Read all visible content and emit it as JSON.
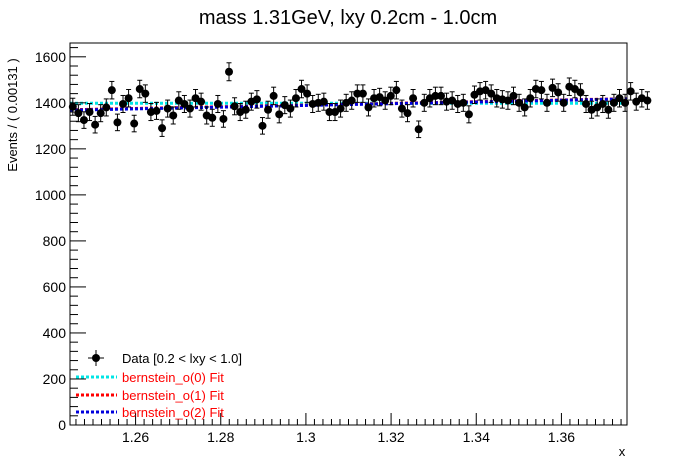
{
  "chart_data": {
    "type": "scatter",
    "title": "mass 1.31GeV, lxy 0.2cm - 1.0cm",
    "xlabel": "x",
    "ylabel": "Events / ( 0.00131 )",
    "xlim": [
      1.2446,
      1.3754
    ],
    "ylim": [
      0,
      1660
    ],
    "x_ticks": [
      1.26,
      1.28,
      1.3,
      1.32,
      1.34,
      1.36
    ],
    "x_tick_labels": [
      "1.26",
      "1.28",
      "1.3",
      "1.32",
      "1.34",
      "1.36"
    ],
    "y_ticks": [
      0,
      200,
      400,
      600,
      800,
      1000,
      1200,
      1400,
      1600
    ],
    "y_tick_labels": [
      "0",
      "200",
      "400",
      "600",
      "800",
      "1000",
      "1200",
      "1400",
      "1600"
    ],
    "grid": false,
    "legend_position": "bottom-left",
    "series": [
      {
        "name": "Data [0.2 < lxy < 1.0]",
        "kind": "points",
        "color": "#000000",
        "x_start": 1.24526,
        "x_step": 0.00131,
        "values": [
          1383,
          1355,
          1325,
          1360,
          1305,
          1355,
          1380,
          1455,
          1315,
          1395,
          1420,
          1310,
          1460,
          1440,
          1360,
          1365,
          1290,
          1375,
          1345,
          1410,
          1395,
          1375,
          1420,
          1405,
          1345,
          1335,
          1395,
          1330,
          1535,
          1385,
          1360,
          1370,
          1405,
          1415,
          1300,
          1370,
          1430,
          1350,
          1390,
          1375,
          1420,
          1460,
          1440,
          1395,
          1400,
          1405,
          1360,
          1360,
          1375,
          1400,
          1410,
          1440,
          1440,
          1380,
          1420,
          1425,
          1410,
          1430,
          1455,
          1375,
          1355,
          1420,
          1285,
          1400,
          1420,
          1430,
          1430,
          1405,
          1410,
          1395,
          1400,
          1350,
          1435,
          1450,
          1455,
          1440,
          1420,
          1415,
          1410,
          1430,
          1400,
          1380,
          1420,
          1460,
          1455,
          1400,
          1465,
          1445,
          1400,
          1470,
          1460,
          1445,
          1395,
          1370,
          1380,
          1395,
          1370,
          1400,
          1420,
          1400,
          1450,
          1405,
          1420,
          1410
        ],
        "errors": [
          37,
          37,
          36,
          37,
          36,
          37,
          37,
          38,
          36,
          37,
          38,
          36,
          38,
          38,
          37,
          37,
          36,
          37,
          37,
          38,
          37,
          37,
          38,
          37,
          37,
          37,
          37,
          36,
          39,
          37,
          37,
          37,
          37,
          38,
          36,
          37,
          38,
          37,
          37,
          37,
          38,
          38,
          38,
          37,
          37,
          37,
          37,
          37,
          37,
          37,
          38,
          38,
          38,
          37,
          38,
          38,
          38,
          38,
          38,
          37,
          37,
          38,
          36,
          37,
          38,
          38,
          38,
          37,
          38,
          37,
          37,
          37,
          38,
          38,
          38,
          38,
          38,
          38,
          38,
          38,
          37,
          37,
          38,
          38,
          38,
          37,
          38,
          38,
          37,
          38,
          38,
          38,
          37,
          37,
          37,
          37,
          37,
          37,
          38,
          37,
          38,
          37,
          38,
          38
        ]
      },
      {
        "name": "bernstein_o(0) Fit",
        "kind": "line",
        "color": "#00e5e5",
        "x": [
          1.2446,
          1.3754
        ],
        "values": [
          1398,
          1398
        ]
      },
      {
        "name": "bernstein_o(1) Fit",
        "kind": "line",
        "color": "#ff0000",
        "x": [
          1.2446,
          1.3754
        ],
        "values": [
          1370,
          1418
        ]
      },
      {
        "name": "bernstein_o(2) Fit",
        "kind": "line",
        "color": "#0000dd",
        "x": [
          1.2446,
          1.3754
        ],
        "values": [
          1368,
          1417
        ]
      }
    ]
  }
}
